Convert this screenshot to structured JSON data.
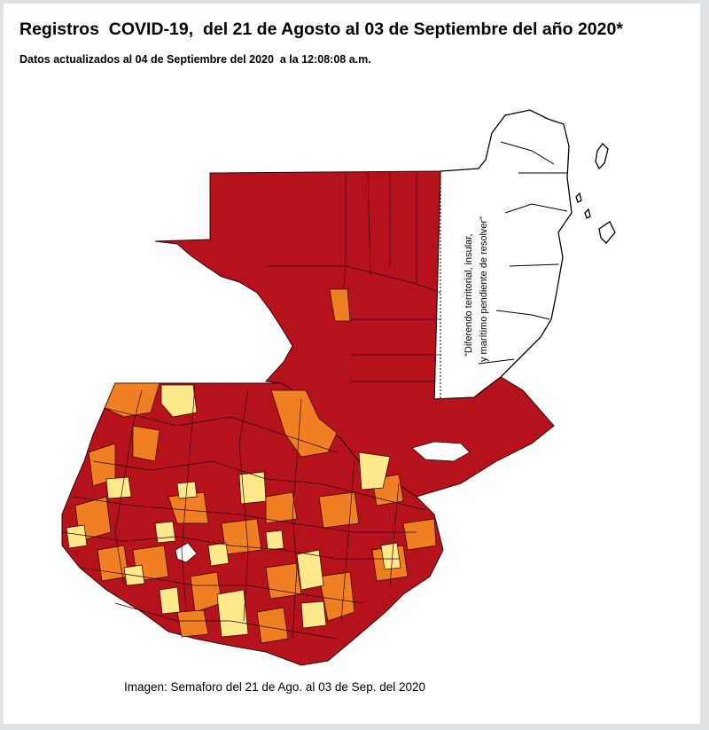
{
  "header": {
    "title": "Registros  COVID-19,  del 21 de Agosto al 03 de Septiembre del año 2020*",
    "subtitle": "Datos actualizados al 04 de Septiembre del 2020  a la 12:08:08 a.m."
  },
  "map": {
    "belize_note_line1": "\"Diferendo territorial, insular,",
    "belize_note_line2": "y marítimo pendiente de resolver\"",
    "colors": {
      "high": "#b5121b",
      "medium": "#ef7f22",
      "moderate": "#fde98c",
      "disputed": "#ffffff"
    }
  },
  "footer": {
    "caption": "Imagen: Semaforo del 21 de Ago. al 03 de Sep. del 2020"
  }
}
